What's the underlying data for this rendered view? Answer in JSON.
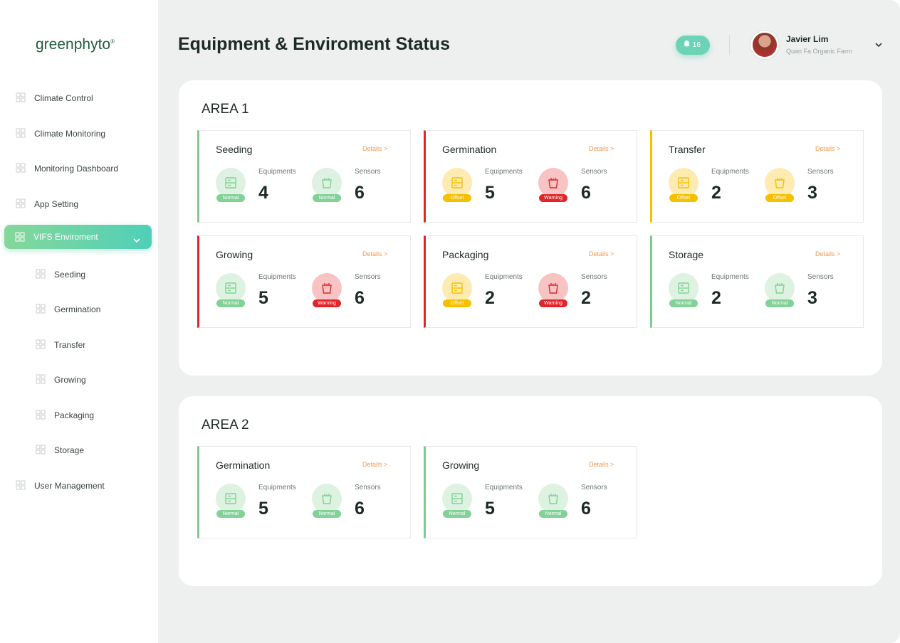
{
  "sidebar": {
    "logo": "greenphyto",
    "logo_mark": "®",
    "menu": [
      {
        "label": "Climate Control"
      },
      {
        "label": "Climate Monitoring"
      },
      {
        "label": "Monitoring Dashboard"
      },
      {
        "label": "App Setting"
      },
      {
        "label": "VIFS Enviroment",
        "active": true,
        "children": [
          "Seeding",
          "Germination",
          "Transfer",
          "Growing",
          "Packaging",
          "Storage"
        ]
      },
      {
        "label": "User Management"
      }
    ]
  },
  "header": {
    "title": "Equipment & Enviroment Status",
    "notifications": 16,
    "user_name": "Javier Lim",
    "user_farm": "Quan Fa Organic Farm"
  },
  "status_colors": {
    "Normal": {
      "bg": "#ddf2e1",
      "badge": "#82d197"
    },
    "Offset": {
      "bg": "#fdebb2",
      "badge": "#f6c000"
    },
    "Warning": {
      "bg": "#f8c3c3",
      "badge": "#e0262b"
    }
  },
  "areas": [
    {
      "title": "AREA 1",
      "cards": [
        {
          "name": "Seeding",
          "details": "Details >",
          "color": "#7dcc8f",
          "equipment": {
            "label": "Equipments",
            "count": 4,
            "status": "Normal"
          },
          "sensors": {
            "label": "Sensors",
            "count": 6,
            "status": "Normal"
          }
        },
        {
          "name": "Germination",
          "details": "Details >",
          "color": "#e0262b",
          "equipment": {
            "label": "Equipments",
            "count": 5,
            "status": "Offset"
          },
          "sensors": {
            "label": "Sensors",
            "count": 6,
            "status": "Warning"
          }
        },
        {
          "name": "Transfer",
          "details": "Details >",
          "color": "#f6c000",
          "equipment": {
            "label": "Equipments",
            "count": 2,
            "status": "Offset"
          },
          "sensors": {
            "label": "Sensors",
            "count": 3,
            "status": "Offset"
          }
        },
        {
          "name": "Growing",
          "details": "Details >",
          "color": "#e0262b",
          "equipment": {
            "label": "Equipments",
            "count": 5,
            "status": "Normal"
          },
          "sensors": {
            "label": "Sensors",
            "count": 6,
            "status": "Warning"
          }
        },
        {
          "name": "Packaging",
          "details": "Details >",
          "color": "#e0262b",
          "equipment": {
            "label": "Equipments",
            "count": 2,
            "status": "Offset"
          },
          "sensors": {
            "label": "Sensors",
            "count": 2,
            "status": "Warning"
          }
        },
        {
          "name": "Storage",
          "details": "Details >",
          "color": "#7dcc8f",
          "equipment": {
            "label": "Equipments",
            "count": 2,
            "status": "Normal"
          },
          "sensors": {
            "label": "Sensors",
            "count": 3,
            "status": "Normal"
          }
        }
      ]
    },
    {
      "title": "AREA 2",
      "cards": [
        {
          "name": "Germination",
          "details": "Details >",
          "color": "#7dcc8f",
          "equipment": {
            "label": "Equipments",
            "count": 5,
            "status": "Normal"
          },
          "sensors": {
            "label": "Sensors",
            "count": 6,
            "status": "Normal"
          }
        },
        {
          "name": "Growing",
          "details": "Details >",
          "color": "#7dcc8f",
          "equipment": {
            "label": "Equipments",
            "count": 5,
            "status": "Normal"
          },
          "sensors": {
            "label": "Sensors",
            "count": 6,
            "status": "Normal"
          }
        }
      ]
    }
  ]
}
